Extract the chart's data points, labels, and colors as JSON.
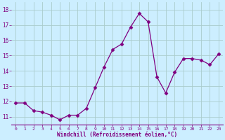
{
  "x": [
    0,
    1,
    2,
    3,
    4,
    5,
    6,
    7,
    8,
    9,
    10,
    11,
    12,
    13,
    14,
    15,
    16,
    17,
    18,
    19,
    20,
    21,
    22,
    23
  ],
  "y": [
    11.9,
    11.9,
    11.4,
    11.3,
    11.1,
    10.8,
    11.1,
    11.1,
    11.55,
    12.9,
    14.25,
    15.4,
    15.75,
    16.85,
    17.75,
    17.2,
    13.6,
    12.55,
    13.9,
    14.8,
    14.8,
    14.7,
    14.4,
    15.1
  ],
  "line_color": "#800080",
  "marker": "D",
  "marker_size": 2.5,
  "bg_color": "#cceeff",
  "grid_color": "#aacccc",
  "xlabel": "Windchill (Refroidissement éolien,°C)",
  "ytick_labels": [
    "11",
    "12",
    "13",
    "14",
    "15",
    "16",
    "17",
    "18"
  ],
  "ytick_values": [
    11,
    12,
    13,
    14,
    15,
    16,
    17,
    18
  ],
  "xlim": [
    -0.5,
    23.5
  ],
  "ylim": [
    10.5,
    18.5
  ]
}
